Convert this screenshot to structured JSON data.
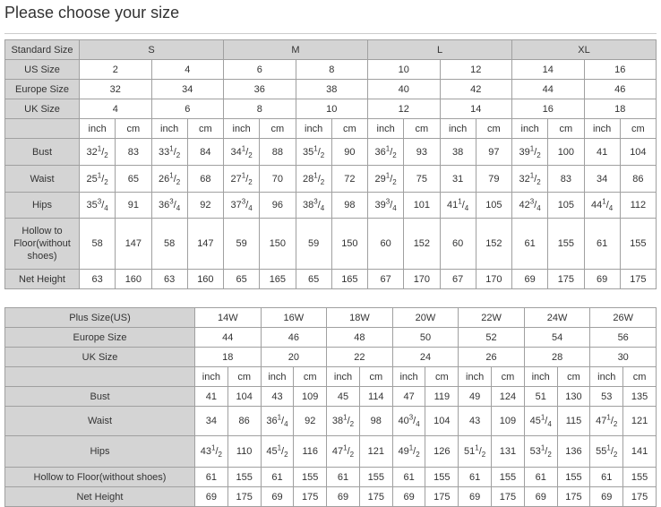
{
  "title": "Please choose your size",
  "colors": {
    "header_bg": "#d4d4d4",
    "border": "#a0a0a0"
  },
  "table1": {
    "standard": {
      "label": "Standard Size",
      "values": [
        "S",
        "M",
        "L",
        "XL"
      ]
    },
    "us": {
      "label": "US Size",
      "values": [
        "2",
        "4",
        "6",
        "8",
        "10",
        "12",
        "14",
        "16"
      ]
    },
    "europe": {
      "label": "Europe Size",
      "values": [
        "32",
        "34",
        "36",
        "38",
        "40",
        "42",
        "44",
        "46"
      ]
    },
    "uk": {
      "label": "UK Size",
      "values": [
        "4",
        "6",
        "8",
        "10",
        "12",
        "14",
        "16",
        "18"
      ]
    },
    "units": [
      "inch",
      "cm"
    ],
    "rows": [
      {
        "label": "Bust",
        "values": [
          "32 1/2",
          "83",
          "33 1/2",
          "84",
          "34 1/2",
          "88",
          "35 1/2",
          "90",
          "36 1/2",
          "93",
          "38",
          "97",
          "39 1/2",
          "100",
          "41",
          "104"
        ]
      },
      {
        "label": "Waist",
        "values": [
          "25 1/2",
          "65",
          "26 1/2",
          "68",
          "27 1/2",
          "70",
          "28 1/2",
          "72",
          "29 1/2",
          "75",
          "31",
          "79",
          "32 1/2",
          "83",
          "34",
          "86"
        ]
      },
      {
        "label": "Hips",
        "values": [
          "35 3/4",
          "91",
          "36 3/4",
          "92",
          "37 3/4",
          "96",
          "38 3/4",
          "98",
          "39 3/4",
          "101",
          "41 1/4",
          "105",
          "42 3/4",
          "105",
          "44 1/4",
          "112"
        ]
      },
      {
        "label": "Hollow to Floor(without shoes)",
        "values": [
          "58",
          "147",
          "58",
          "147",
          "59",
          "150",
          "59",
          "150",
          "60",
          "152",
          "60",
          "152",
          "61",
          "155",
          "61",
          "155"
        ]
      },
      {
        "label": "Net Height",
        "values": [
          "63",
          "160",
          "63",
          "160",
          "65",
          "165",
          "65",
          "165",
          "67",
          "170",
          "67",
          "170",
          "69",
          "175",
          "69",
          "175"
        ]
      }
    ]
  },
  "table2": {
    "plus": {
      "label": "Plus Size(US)",
      "values": [
        "14W",
        "16W",
        "18W",
        "20W",
        "22W",
        "24W",
        "26W"
      ]
    },
    "europe": {
      "label": "Europe Size",
      "values": [
        "44",
        "46",
        "48",
        "50",
        "52",
        "54",
        "56"
      ]
    },
    "uk": {
      "label": "UK Size",
      "values": [
        "18",
        "20",
        "22",
        "24",
        "26",
        "28",
        "30"
      ]
    },
    "units": [
      "inch",
      "cm"
    ],
    "rows": [
      {
        "label": "Bust",
        "values": [
          "41",
          "104",
          "43",
          "109",
          "45",
          "114",
          "47",
          "119",
          "49",
          "124",
          "51",
          "130",
          "53",
          "135"
        ]
      },
      {
        "label": "Waist",
        "values": [
          "34",
          "86",
          "36 1/4",
          "92",
          "38 1/2",
          "98",
          "40 3/4",
          "104",
          "43",
          "109",
          "45 1/4",
          "115",
          "47 1/2",
          "121"
        ]
      },
      {
        "label": "Hips",
        "values": [
          "43 1/2",
          "110",
          "45 1/2",
          "116",
          "47 1/2",
          "121",
          "49 1/2",
          "126",
          "51 1/2",
          "131",
          "53 1/2",
          "136",
          "55 1/2",
          "141"
        ]
      },
      {
        "label": "Hollow to Floor(without shoes)",
        "values": [
          "61",
          "155",
          "61",
          "155",
          "61",
          "155",
          "61",
          "155",
          "61",
          "155",
          "61",
          "155",
          "61",
          "155"
        ]
      },
      {
        "label": "Net Height",
        "values": [
          "69",
          "175",
          "69",
          "175",
          "69",
          "175",
          "69",
          "175",
          "69",
          "175",
          "69",
          "175",
          "69",
          "175"
        ]
      }
    ]
  }
}
